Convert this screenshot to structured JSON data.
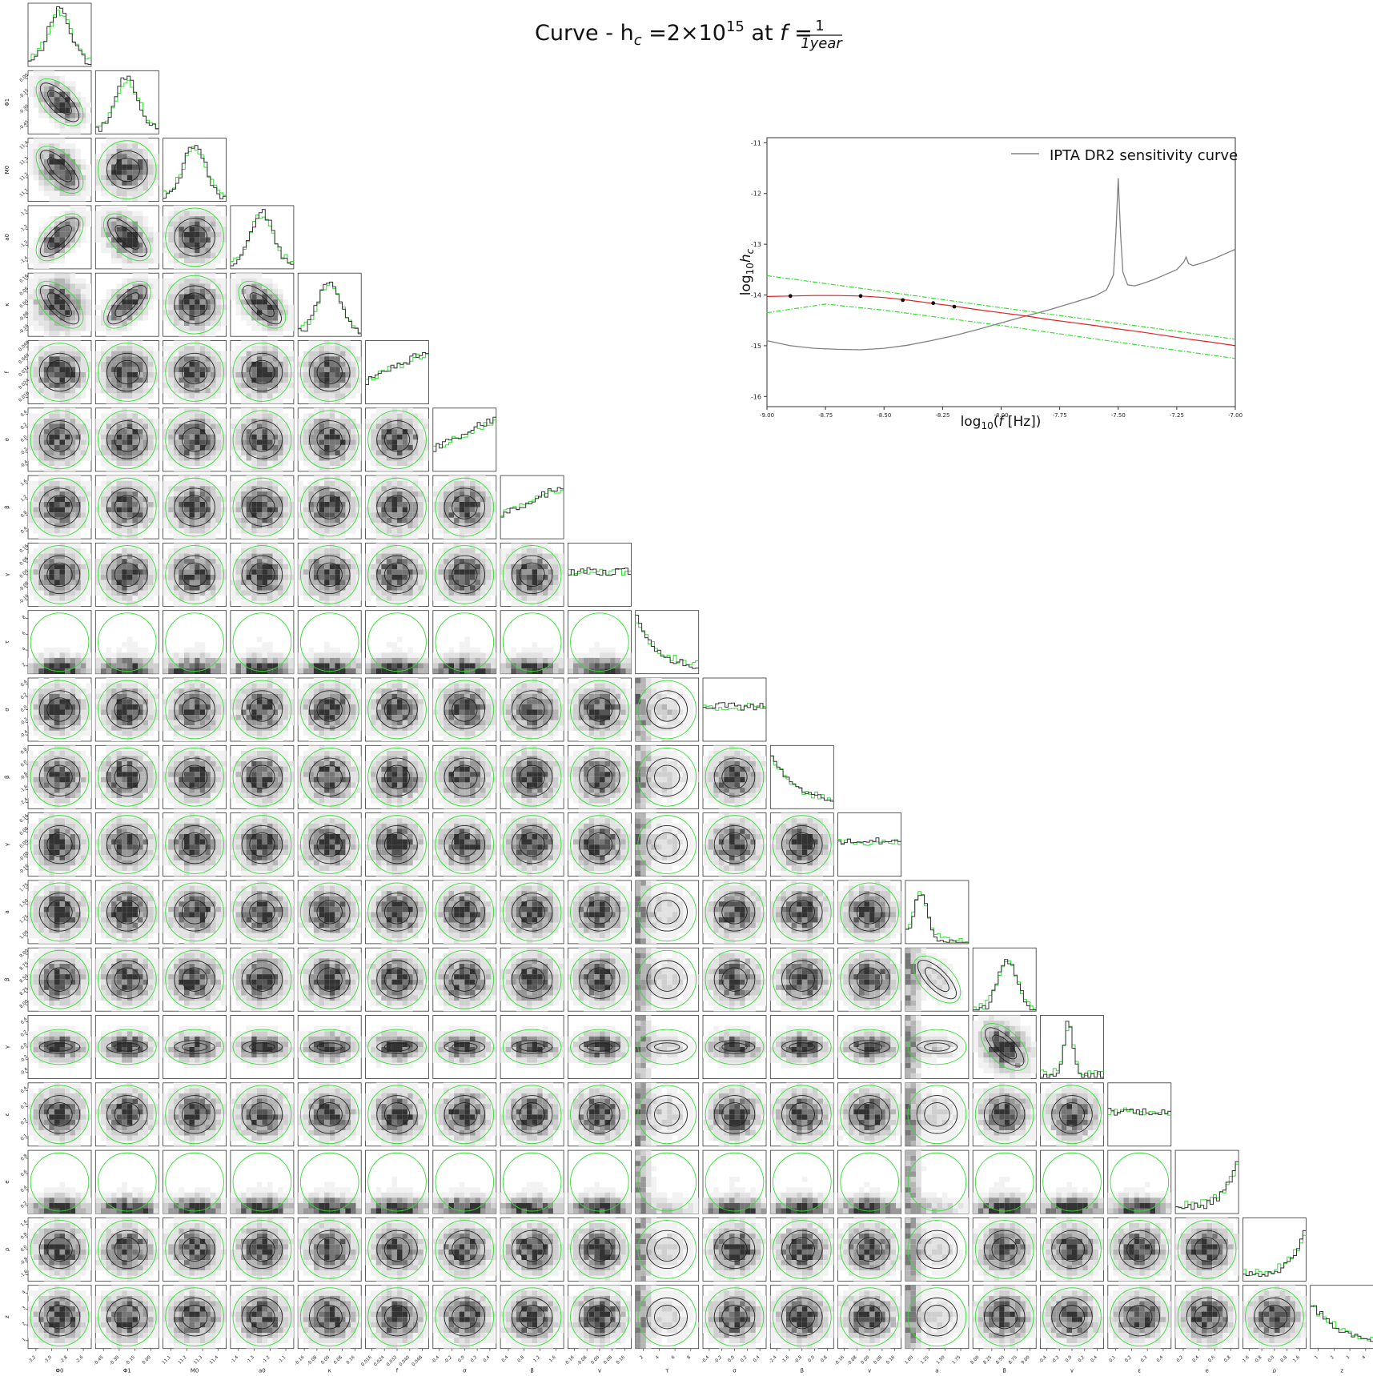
{
  "figure": {
    "title_prefix": "Curve - h",
    "title_sub": "c",
    "title_mid": " =2×10",
    "title_sup": "15",
    "title_at": " at ",
    "title_f": "f",
    "title_eq": " = ",
    "title_num": "1",
    "title_den": "1year"
  },
  "colors": {
    "posterior": "#1a1a1a",
    "prior": "#33dd33",
    "curve": "#e02020",
    "sensitivity": "#808080"
  },
  "chart_data": [
    {
      "type": "line",
      "xlabel": "log10(f [Hz])",
      "ylabel": "log10 hc",
      "xlim": [
        -9.0,
        -7.0
      ],
      "ylim": [
        -16.2,
        -10.9
      ],
      "xticks": [
        "-9.00",
        "-8.75",
        "-8.50",
        "-8.25",
        "-8.00",
        "-7.75",
        "-7.50",
        "-7.25",
        "-7.00"
      ],
      "yticks": [
        "-11",
        "-12",
        "-13",
        "-14",
        "-15",
        "-16"
      ],
      "legend": "IPTA DR2 sensitivity curve",
      "legend_position": "top-right",
      "series": [
        {
          "name": "IPTA DR2 sensitivity curve",
          "color": "#808080",
          "x": [
            -9.0,
            -8.9,
            -8.8,
            -8.7,
            -8.6,
            -8.5,
            -8.4,
            -8.3,
            -8.2,
            -8.1,
            -8.0,
            -7.9,
            -7.8,
            -7.7,
            -7.6,
            -7.55,
            -7.52,
            -7.51,
            -7.5,
            -7.49,
            -7.48,
            -7.46,
            -7.43,
            -7.4,
            -7.35,
            -7.3,
            -7.25,
            -7.22,
            -7.21,
            -7.2,
            -7.18,
            -7.15,
            -7.1,
            -7.05,
            -7.0
          ],
          "y": [
            -14.9,
            -15.0,
            -15.05,
            -15.07,
            -15.08,
            -15.05,
            -14.99,
            -14.9,
            -14.8,
            -14.68,
            -14.55,
            -14.42,
            -14.3,
            -14.16,
            -14.02,
            -13.9,
            -13.6,
            -12.8,
            -11.7,
            -12.8,
            -13.55,
            -13.8,
            -13.82,
            -13.78,
            -13.7,
            -13.6,
            -13.5,
            -13.35,
            -13.25,
            -13.38,
            -13.42,
            -13.38,
            -13.3,
            -13.2,
            -13.1
          ]
        },
        {
          "color": "#e02020",
          "x": [
            -9.0,
            -8.9,
            -8.8,
            -8.7,
            -8.6,
            -8.5,
            -8.4,
            -8.3,
            -8.2,
            -8.1,
            -8.0,
            -7.9,
            -7.8,
            -7.7,
            -7.6,
            -7.5,
            -7.4,
            -7.3,
            -7.2,
            -7.1,
            -7.0
          ],
          "y": [
            -14.03,
            -14.02,
            -14.01,
            -14.01,
            -14.02,
            -14.05,
            -14.1,
            -14.16,
            -14.22,
            -14.29,
            -14.35,
            -14.41,
            -14.48,
            -14.54,
            -14.6,
            -14.67,
            -14.73,
            -14.8,
            -14.87,
            -14.93,
            -15.0
          ]
        },
        {
          "color": "#33dd33",
          "x": [
            -9.0,
            -8.5,
            -8.0,
            -7.5,
            -7.0
          ],
          "y": [
            -13.62,
            -13.93,
            -14.25,
            -14.56,
            -14.87
          ]
        },
        {
          "color": "#33dd33",
          "x": [
            -9.0,
            -8.75,
            -8.5,
            -8.0,
            -7.5,
            -7.0
          ],
          "y": [
            -14.35,
            -14.18,
            -14.3,
            -14.6,
            -14.93,
            -15.25
          ]
        },
        {
          "color": "#111111",
          "x": [
            -8.9,
            -8.6,
            -8.42,
            -8.29,
            -8.2
          ],
          "y": [
            -14.02,
            -14.02,
            -14.1,
            -14.16,
            -14.23
          ]
        }
      ]
    },
    {
      "type": "scatter",
      "parameters": [
        "Φ0",
        "Φ1",
        "M0",
        "a0",
        "κ",
        "f",
        "σ",
        "β",
        "γ",
        "τ",
        "σ",
        "β",
        "γ",
        "a",
        "β",
        "γ",
        "ε",
        "e",
        "ρ",
        "z"
      ],
      "tick_labels": [
        [
          "-3.2",
          "-3.0",
          "-2.8",
          "-2.6"
        ],
        [
          "-0.45",
          "-0.30",
          "-0.15",
          "0.00"
        ],
        [
          "11.1",
          "11.2",
          "11.3",
          "11.4"
        ],
        [
          "-1.4",
          "-1.3",
          "-1.2",
          "-1.1"
        ],
        [
          "-0.16",
          "-0.08",
          "0.00",
          "0.08",
          "0.16"
        ],
        [
          "0.016",
          "0.024",
          "0.032",
          "0.040",
          "0.048"
        ],
        [
          "-0.4",
          "-0.2",
          "0.0",
          "0.2",
          "0.4"
        ],
        [
          "0.4",
          "0.8",
          "1.2",
          "1.6"
        ],
        [
          "-0.16",
          "-0.08",
          "0.00",
          "0.08",
          "0.16"
        ],
        [
          "2",
          "4",
          "6",
          "8"
        ],
        [
          "-0.4",
          "-0.2",
          "0.0",
          "0.2",
          "0.4"
        ],
        [
          "-2.4",
          "-1.6",
          "-0.8",
          "0.0",
          "0.8"
        ],
        [
          "-0.16",
          "-0.08",
          "0.00",
          "0.08",
          "0.16"
        ],
        [
          "1.00",
          "1.25",
          "1.50",
          "1.75"
        ],
        [
          "8.00",
          "8.25",
          "8.50",
          "8.75",
          "9.00"
        ],
        [
          "-0.4",
          "-0.2",
          "0.0",
          "0.2",
          "0.4"
        ],
        [
          "0.1",
          "0.2",
          "0.3",
          "0.4"
        ],
        [
          "0.2",
          "0.4",
          "0.6",
          "0.8"
        ],
        [
          "-1.6",
          "-0.8",
          "0.0",
          "0.8",
          "1.6"
        ],
        [
          "1",
          "2",
          "3",
          "4"
        ]
      ]
    }
  ]
}
